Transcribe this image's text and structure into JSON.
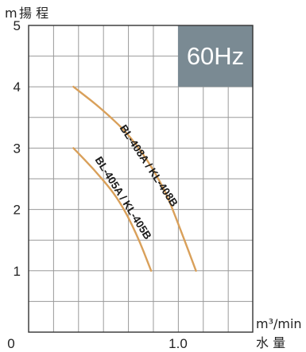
{
  "chart_data": {
    "type": "line",
    "ylabel_unit": "m",
    "ylabel": "揚 程",
    "xlabel_unit": "m³/min",
    "xlabel": "水 量",
    "badge": "60Hz",
    "xlim": [
      0,
      1.5
    ],
    "ylim": [
      0,
      5
    ],
    "x_ticks": [
      {
        "value": 0,
        "label": "0"
      },
      {
        "value": 1.0,
        "label": "1.0"
      }
    ],
    "y_ticks": [
      {
        "value": 1,
        "label": "1"
      },
      {
        "value": 2,
        "label": "2"
      },
      {
        "value": 3,
        "label": "3"
      },
      {
        "value": 4,
        "label": "4"
      },
      {
        "value": 5,
        "label": "5"
      }
    ],
    "grid": true,
    "grid_x_step": 0.167,
    "grid_y_step": 0.5,
    "series": [
      {
        "name": "BL-408A / KL-408B",
        "color": "#d9a05a",
        "points": [
          [
            0.3,
            4.0
          ],
          [
            0.5,
            3.62
          ],
          [
            0.7,
            3.15
          ],
          [
            0.9,
            2.4
          ],
          [
            1.02,
            1.65
          ],
          [
            1.12,
            1.0
          ]
        ]
      },
      {
        "name": "BL-405A / KL-405B",
        "color": "#d9a05a",
        "points": [
          [
            0.3,
            3.0
          ],
          [
            0.45,
            2.62
          ],
          [
            0.6,
            2.18
          ],
          [
            0.72,
            1.62
          ],
          [
            0.82,
            1.0
          ]
        ]
      }
    ]
  }
}
